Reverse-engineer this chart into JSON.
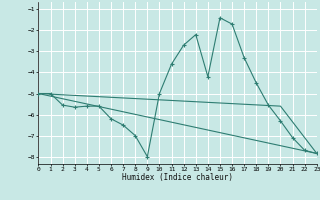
{
  "xlabel": "Humidex (Indice chaleur)",
  "bg_color": "#c8e8e5",
  "grid_color": "#ffffff",
  "line_color": "#2e7d72",
  "series_main": {
    "x": [
      0,
      1,
      2,
      3,
      4,
      5,
      6,
      7,
      8,
      9,
      10,
      11,
      12,
      13,
      14,
      15,
      16,
      17,
      18,
      19,
      20,
      21,
      22,
      23
    ],
    "y": [
      -5.0,
      -5.0,
      -5.55,
      -5.65,
      -5.6,
      -5.6,
      -6.2,
      -6.5,
      -7.0,
      -8.0,
      -5.0,
      -3.6,
      -2.7,
      -2.2,
      -4.2,
      -1.4,
      -1.7,
      -3.3,
      -4.5,
      -5.55,
      -6.3,
      -7.1,
      -7.7,
      -7.85
    ]
  },
  "series_line1": {
    "x": [
      0,
      23
    ],
    "y": [
      -5.0,
      -7.85
    ]
  },
  "series_line2": {
    "x": [
      0,
      20,
      23
    ],
    "y": [
      -5.0,
      -5.6,
      -7.85
    ]
  },
  "xlim": [
    0,
    23
  ],
  "ylim": [
    -8.35,
    -0.65
  ],
  "yticks": [
    -1,
    -2,
    -3,
    -4,
    -5,
    -6,
    -7,
    -8
  ],
  "xticks": [
    0,
    1,
    2,
    3,
    4,
    5,
    6,
    7,
    8,
    9,
    10,
    11,
    12,
    13,
    14,
    15,
    16,
    17,
    18,
    19,
    20,
    21,
    22,
    23
  ]
}
